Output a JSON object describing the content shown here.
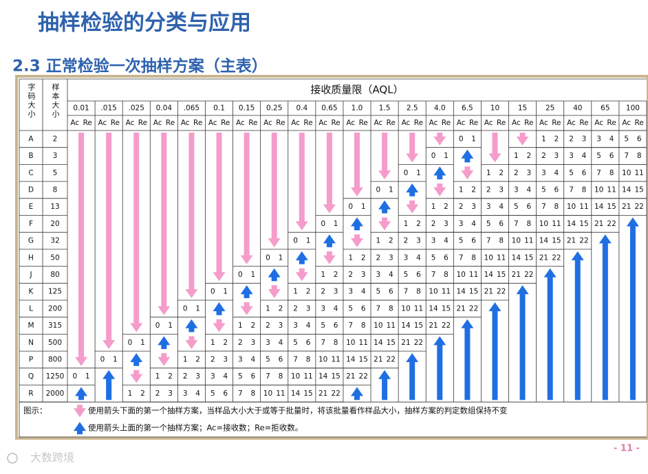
{
  "header": {
    "title": "抽样检验的分类与应用",
    "subtitle": "2.3 正常检验一次抽样方案（主表）"
  },
  "table": {
    "code_header": "字码大小",
    "size_header": "样本大小",
    "aql_header": "接收质量限（AQL）",
    "aql": [
      "0.01",
      ".015",
      ".025",
      "0.04",
      ".065",
      "0.1",
      "0.15",
      "0.25",
      "0.4",
      "0.65",
      "1.0",
      "1.5",
      "2.5",
      "4.0",
      "6.5",
      "10",
      "15",
      "25",
      "40",
      "65",
      "100"
    ],
    "ac": "Ac",
    "re": "Re",
    "rows": [
      {
        "code": "A",
        "size": 2,
        "cells": [
          null,
          null,
          null,
          null,
          null,
          null,
          null,
          null,
          null,
          null,
          null,
          null,
          null,
          null,
          [
            0,
            1
          ],
          null,
          null,
          [
            1,
            2
          ],
          [
            2,
            3
          ],
          [
            3,
            4
          ],
          [
            5,
            6
          ]
        ]
      },
      {
        "code": "B",
        "size": 3,
        "cells": [
          null,
          null,
          null,
          null,
          null,
          null,
          null,
          null,
          null,
          null,
          null,
          null,
          null,
          [
            0,
            1
          ],
          null,
          null,
          [
            1,
            2
          ],
          [
            2,
            3
          ],
          [
            3,
            4
          ],
          [
            5,
            6
          ],
          [
            7,
            8
          ]
        ]
      },
      {
        "code": "C",
        "size": 5,
        "cells": [
          null,
          null,
          null,
          null,
          null,
          null,
          null,
          null,
          null,
          null,
          null,
          null,
          [
            0,
            1
          ],
          null,
          null,
          [
            1,
            2
          ],
          [
            2,
            3
          ],
          [
            3,
            4
          ],
          [
            5,
            6
          ],
          [
            7,
            8
          ],
          [
            10,
            11
          ]
        ]
      },
      {
        "code": "D",
        "size": 8,
        "cells": [
          null,
          null,
          null,
          null,
          null,
          null,
          null,
          null,
          null,
          null,
          null,
          [
            0,
            1
          ],
          null,
          null,
          [
            1,
            2
          ],
          [
            2,
            3
          ],
          [
            3,
            4
          ],
          [
            5,
            6
          ],
          [
            7,
            8
          ],
          [
            10,
            11
          ],
          [
            14,
            15
          ]
        ]
      },
      {
        "code": "E",
        "size": 13,
        "cells": [
          null,
          null,
          null,
          null,
          null,
          null,
          null,
          null,
          null,
          null,
          [
            0,
            1
          ],
          null,
          null,
          [
            1,
            2
          ],
          [
            2,
            3
          ],
          [
            3,
            4
          ],
          [
            5,
            6
          ],
          [
            7,
            8
          ],
          [
            10,
            11
          ],
          [
            14,
            15
          ],
          [
            21,
            22
          ]
        ]
      },
      {
        "code": "F",
        "size": 20,
        "cells": [
          null,
          null,
          null,
          null,
          null,
          null,
          null,
          null,
          null,
          [
            0,
            1
          ],
          null,
          null,
          [
            1,
            2
          ],
          [
            2,
            3
          ],
          [
            3,
            4
          ],
          [
            5,
            6
          ],
          [
            7,
            8
          ],
          [
            10,
            11
          ],
          [
            14,
            15
          ],
          [
            21,
            22
          ],
          null
        ]
      },
      {
        "code": "G",
        "size": 32,
        "cells": [
          null,
          null,
          null,
          null,
          null,
          null,
          null,
          null,
          [
            0,
            1
          ],
          null,
          null,
          [
            1,
            2
          ],
          [
            2,
            3
          ],
          [
            3,
            4
          ],
          [
            5,
            6
          ],
          [
            7,
            8
          ],
          [
            10,
            11
          ],
          [
            14,
            15
          ],
          [
            21,
            22
          ],
          null,
          null
        ]
      },
      {
        "code": "H",
        "size": 50,
        "cells": [
          null,
          null,
          null,
          null,
          null,
          null,
          null,
          [
            0,
            1
          ],
          null,
          null,
          [
            1,
            2
          ],
          [
            2,
            3
          ],
          [
            3,
            4
          ],
          [
            5,
            6
          ],
          [
            7,
            8
          ],
          [
            10,
            11
          ],
          [
            14,
            15
          ],
          [
            21,
            22
          ],
          null,
          null,
          null
        ]
      },
      {
        "code": "J",
        "size": 80,
        "cells": [
          null,
          null,
          null,
          null,
          null,
          null,
          [
            0,
            1
          ],
          null,
          null,
          [
            1,
            2
          ],
          [
            2,
            3
          ],
          [
            3,
            4
          ],
          [
            5,
            6
          ],
          [
            7,
            8
          ],
          [
            10,
            11
          ],
          [
            14,
            15
          ],
          [
            21,
            22
          ],
          null,
          null,
          null,
          null
        ]
      },
      {
        "code": "K",
        "size": 125,
        "cells": [
          null,
          null,
          null,
          null,
          null,
          [
            0,
            1
          ],
          null,
          null,
          [
            1,
            2
          ],
          [
            2,
            3
          ],
          [
            3,
            4
          ],
          [
            5,
            6
          ],
          [
            7,
            8
          ],
          [
            10,
            11
          ],
          [
            14,
            15
          ],
          [
            21,
            22
          ],
          null,
          null,
          null,
          null,
          null
        ]
      },
      {
        "code": "L",
        "size": 200,
        "cells": [
          null,
          null,
          null,
          null,
          [
            0,
            1
          ],
          null,
          null,
          [
            1,
            2
          ],
          [
            2,
            3
          ],
          [
            3,
            4
          ],
          [
            5,
            6
          ],
          [
            7,
            8
          ],
          [
            10,
            11
          ],
          [
            14,
            15
          ],
          [
            21,
            22
          ],
          null,
          null,
          null,
          null,
          null,
          null
        ]
      },
      {
        "code": "M",
        "size": 315,
        "cells": [
          null,
          null,
          null,
          [
            0,
            1
          ],
          null,
          null,
          [
            1,
            2
          ],
          [
            2,
            3
          ],
          [
            3,
            4
          ],
          [
            5,
            6
          ],
          [
            7,
            8
          ],
          [
            10,
            11
          ],
          [
            14,
            15
          ],
          [
            21,
            22
          ],
          null,
          null,
          null,
          null,
          null,
          null,
          null
        ]
      },
      {
        "code": "N",
        "size": 500,
        "cells": [
          null,
          null,
          [
            0,
            1
          ],
          null,
          null,
          [
            1,
            2
          ],
          [
            2,
            3
          ],
          [
            3,
            4
          ],
          [
            5,
            6
          ],
          [
            7,
            8
          ],
          [
            10,
            11
          ],
          [
            14,
            15
          ],
          [
            21,
            22
          ],
          null,
          null,
          null,
          null,
          null,
          null,
          null,
          null
        ]
      },
      {
        "code": "P",
        "size": 800,
        "cells": [
          null,
          [
            0,
            1
          ],
          null,
          null,
          [
            1,
            2
          ],
          [
            2,
            3
          ],
          [
            3,
            4
          ],
          [
            5,
            6
          ],
          [
            7,
            8
          ],
          [
            10,
            11
          ],
          [
            14,
            15
          ],
          [
            21,
            22
          ],
          null,
          null,
          null,
          null,
          null,
          null,
          null,
          null,
          null
        ]
      },
      {
        "code": "Q",
        "size": 1250,
        "cells": [
          [
            0,
            1
          ],
          null,
          null,
          [
            1,
            2
          ],
          [
            2,
            3
          ],
          [
            3,
            4
          ],
          [
            5,
            6
          ],
          [
            7,
            8
          ],
          [
            10,
            11
          ],
          [
            14,
            15
          ],
          [
            21,
            22
          ],
          null,
          null,
          null,
          null,
          null,
          null,
          null,
          null,
          null,
          null
        ]
      },
      {
        "code": "R",
        "size": 2000,
        "cells": [
          null,
          null,
          [
            1,
            2
          ],
          [
            2,
            3
          ],
          [
            3,
            4
          ],
          [
            5,
            6
          ],
          [
            7,
            8
          ],
          [
            10,
            11
          ],
          [
            14,
            15
          ],
          [
            21,
            22
          ],
          null,
          null,
          null,
          null,
          null,
          null,
          null,
          null,
          null,
          null,
          null
        ]
      }
    ],
    "legend": {
      "label": "图示：",
      "down": "使用箭头下面的第一个抽样方案，当样品大小大于或等于批量时，将该批量看作样品大小，抽样方案的判定数组保持不变",
      "up": "使用箭头上面的第一个抽样方案；Ac=接收数；Re=拒收数。"
    }
  },
  "footer": {
    "page": "- 11 -",
    "watermark": "大数跨境"
  }
}
